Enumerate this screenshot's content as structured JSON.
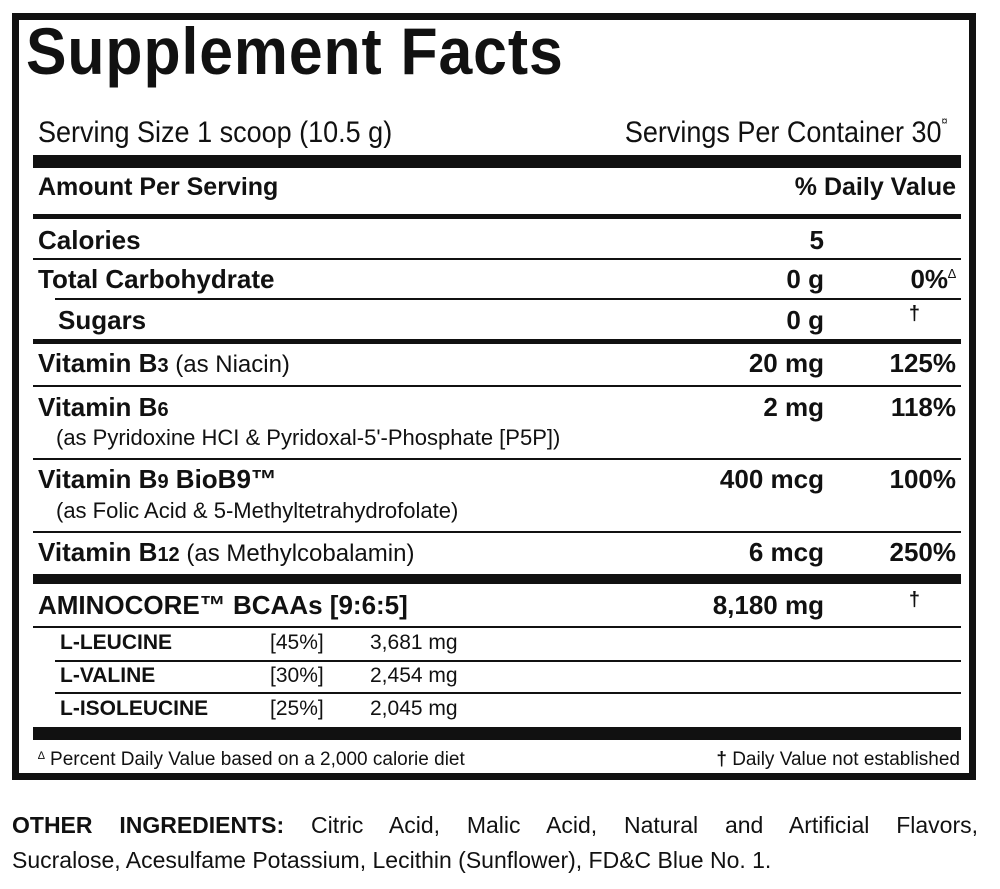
{
  "title": "Supplement Facts",
  "serving_size": "Serving Size 1 scoop (10.5 g)",
  "servings_per_container": "Servings Per Container 30",
  "servings_mark": "¤",
  "header": {
    "amount": "Amount Per Serving",
    "dv": "% Daily Value"
  },
  "rows": [
    {
      "name": "Calories",
      "amount": "5",
      "dv": ""
    },
    {
      "name": "Total Carbohydrate",
      "amount": "0 g",
      "dv": "0%",
      "dv_mark": "∆"
    },
    {
      "name": "Sugars",
      "amount": "0 g",
      "dv": "†"
    },
    {
      "name": "Vitamin B",
      "sub": "3",
      "note": " (as Niacin)",
      "amount": "20 mg",
      "dv": "125%"
    },
    {
      "name": "Vitamin B",
      "sub": "6",
      "detail": "(as Pyridoxine HCI & Pyridoxal-5'-Phosphate [P5P])",
      "amount": "2 mg",
      "dv": "118%"
    },
    {
      "name": "Vitamin B",
      "sub": "9",
      "name2": " BioB9™",
      "detail": "(as Folic Acid & 5-Methyltetrahydrofolate)",
      "amount": "400 mcg",
      "dv": "100%"
    },
    {
      "name": "Vitamin B",
      "sub": "12",
      "note": " (as Methylcobalamin)",
      "amount": "6 mcg",
      "dv": "250%"
    }
  ],
  "blend": {
    "name": "AMINOCORE™ BCAAs [9:6:5]",
    "amount": "8,180 mg",
    "dv": "†"
  },
  "bcaas": [
    {
      "name": "L-LEUCINE",
      "pct": "[45%]",
      "amount": "3,681 mg"
    },
    {
      "name": "L-VALINE",
      "pct": "[30%]",
      "amount": "2,454 mg"
    },
    {
      "name": "L-ISOLEUCINE",
      "pct": "[25%]",
      "amount": "2,045 mg"
    }
  ],
  "footnotes": {
    "left_mark": "∆",
    "left": "Percent Daily Value based on a 2,000 calorie diet",
    "right_mark": "†",
    "right": "Daily Value not established"
  },
  "other_ingredients": {
    "label": "OTHER INGREDIENTS:",
    "line1": "Citric Acid, Malic Acid, Natural and Artificial Flavors,",
    "line2": "Sucralose, Acesulfame Potassium, Lecithin (Sunflower), FD&C Blue No. 1."
  }
}
